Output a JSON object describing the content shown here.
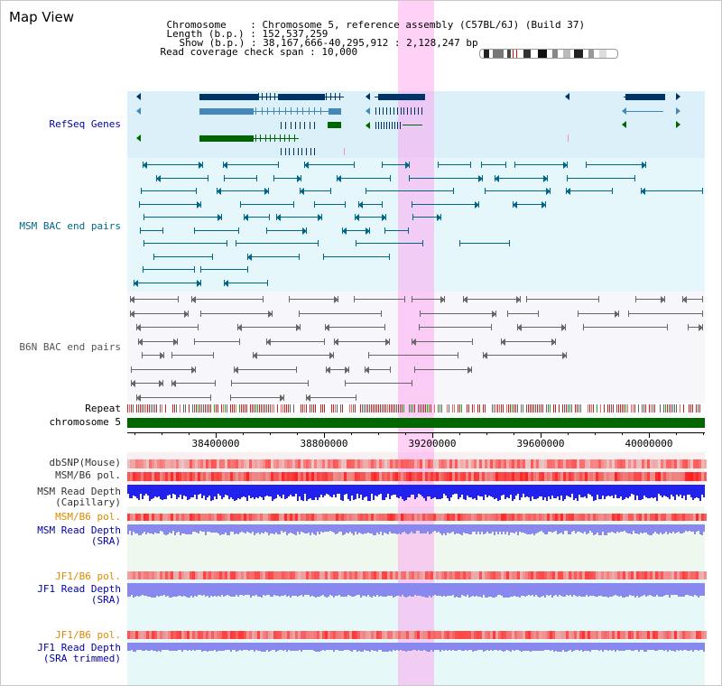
{
  "title": "Map View",
  "info": {
    "chromosome_key": "Chromosome",
    "chromosome_val": "Chromosome 5, reference assembly (C57BL/6J) (Build 37)",
    "length_key": "Length (b.p.)",
    "length_val": "152,537,259",
    "show_key": "Show (b.p.)",
    "show_val": "38,167,666-40,295,912 : 2,128,247 bp",
    "coverage_key": "Read coverage check span",
    "coverage_val": "10,000"
  },
  "tracks": {
    "refseq": "RefSeq Genes",
    "msm_bac": "MSM BAC end pairs",
    "b6n_bac": "B6N BAC end pairs",
    "repeat": "Repeat",
    "chromosome": "chromosome 5",
    "dbsnp": "dbSNP(Mouse)",
    "msm_b6_pol_1": "MSM/B6 pol.",
    "msm_read_depth_cap_1": "MSM Read Depth",
    "msm_read_depth_cap_2": "(Capillary)",
    "msm_b6_pol_2": "MSM/B6 pol.",
    "msm_read_depth_sra_1": "MSM Read Depth",
    "msm_read_depth_sra_2": "(SRA)",
    "jf1_b6_pol_1": "JF1/B6 pol.",
    "jf1_read_depth_sra_1": "JF1 Read Depth",
    "jf1_read_depth_sra_2": "(SRA)",
    "jf1_b6_pol_2": "JF1/B6 pol.",
    "jf1_read_depth_trim_1": "JF1 Read Depth",
    "jf1_read_depth_trim_2": "(SRA trimmed)"
  },
  "axis": {
    "ticks": [
      "38400000",
      "38800000",
      "39200000",
      "39600000",
      "40000000"
    ]
  },
  "colors": {
    "label_blue": "#0000aa",
    "label_teal": "#006688",
    "label_gray": "#555555",
    "label_orange": "#e08800",
    "label_black": "#000000",
    "refseq_dark": "#003366",
    "refseq_mid": "#4488bb",
    "refseq_green": "#006600",
    "bac_teal": "#006688",
    "bac_gray": "#666666",
    "highlight": "#ff99ee",
    "chrom_green": "#006600",
    "depth_blue": "#2222ee",
    "depth_light": "#8888ee"
  }
}
